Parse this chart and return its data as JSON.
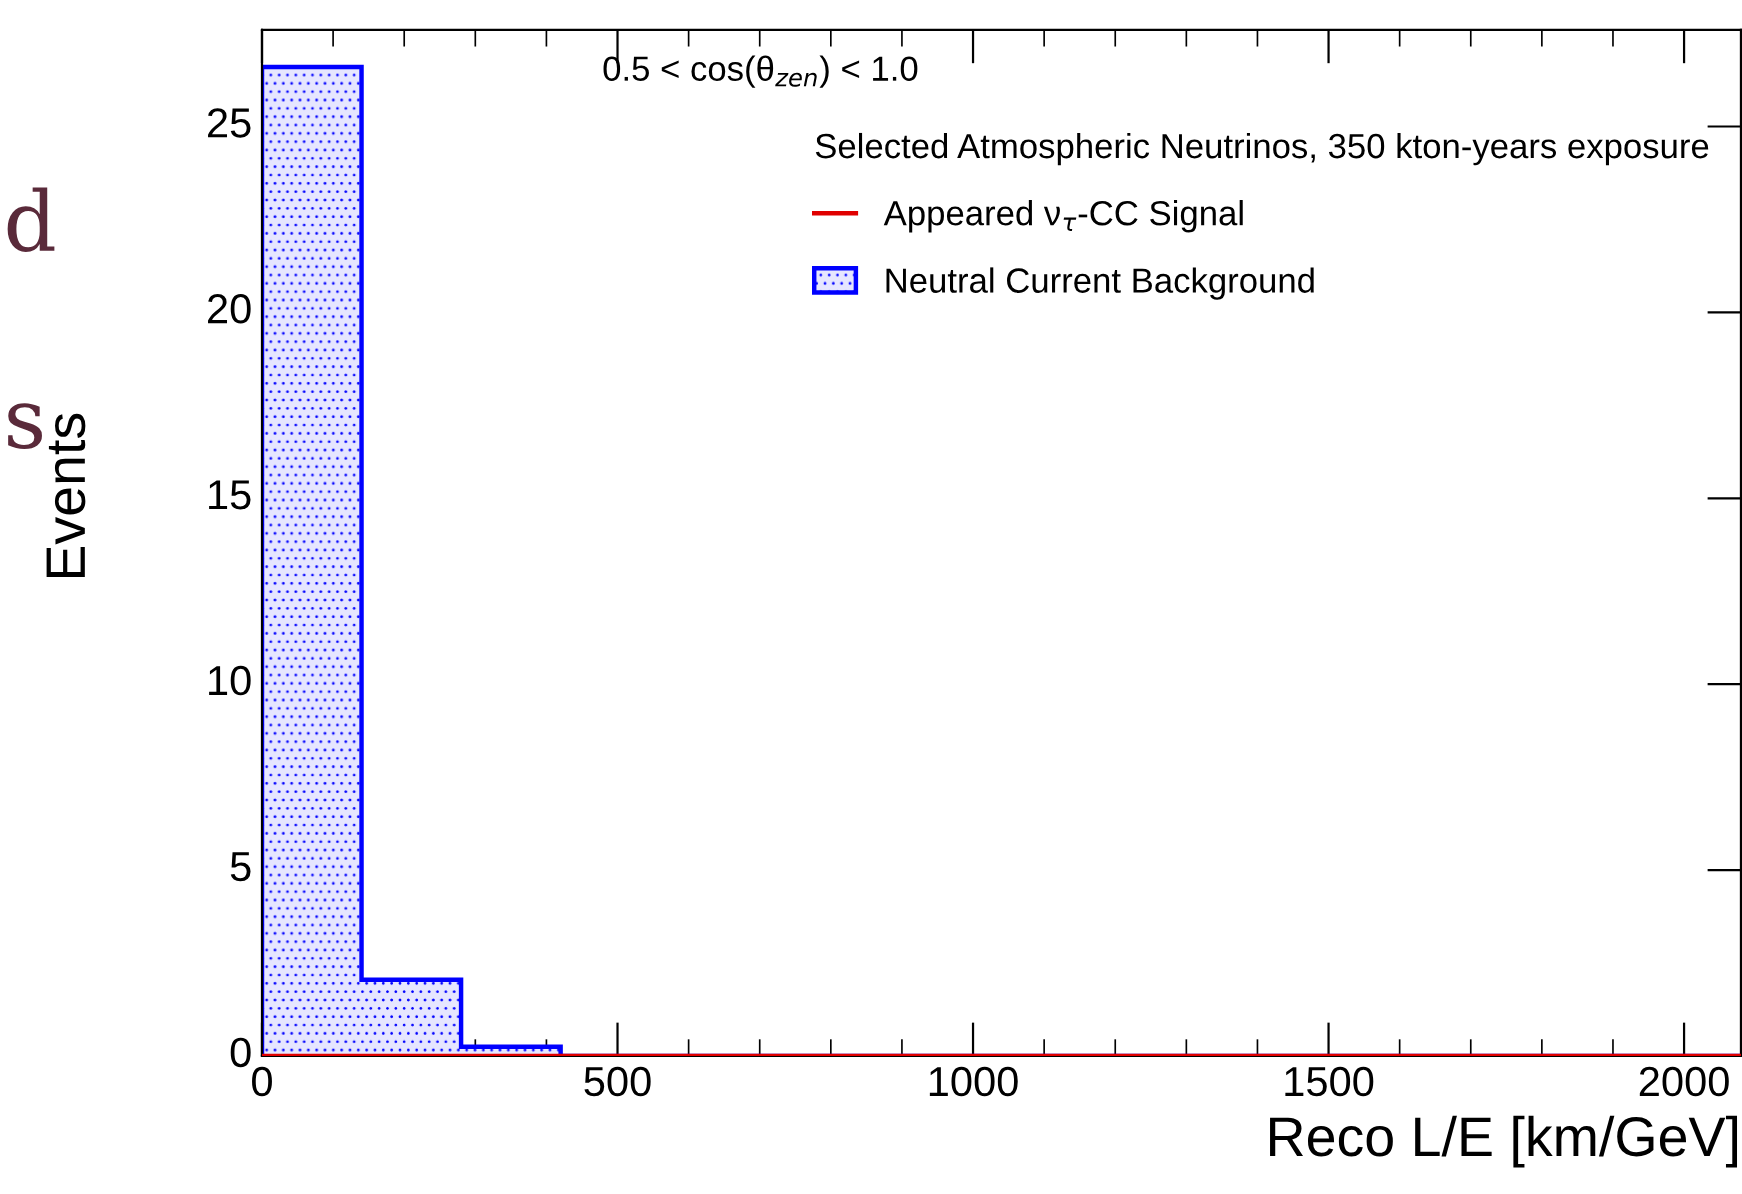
{
  "chart_data": {
    "type": "histogram",
    "xlabel": "Reco L/E [km/GeV]",
    "ylabel": "Events",
    "legend_title": "Selected Atmospheric Neutrinos, 350 kton-years exposure",
    "annotations": [
      "0.5 < cos(θ$_{zen}$) < 1.0",
      "d",
      "s"
    ],
    "bins": [
      0,
      140,
      280,
      420,
      560,
      700,
      840,
      980,
      1120,
      1260,
      1400,
      1540,
      1680,
      1820,
      1960,
      2080
    ],
    "series": [
      {
        "name": "Neutral Current Background",
        "color": "#0000ff",
        "values": [
          26.6,
          2.05,
          0.25,
          0,
          0,
          0,
          0,
          0,
          0,
          0,
          0,
          0,
          0,
          0,
          0
        ]
      },
      {
        "name": "Appeared ν$_{τ}$-CC Signal",
        "color": "#e00000",
        "values": [
          0,
          0,
          0,
          0,
          0,
          0,
          0,
          0,
          0,
          0,
          0,
          0,
          0,
          0,
          0
        ]
      }
    ],
    "xlim": [
      0,
      2080
    ],
    "ylim": [
      0,
      27.6
    ],
    "xticks": [
      0,
      500,
      1000,
      1500,
      2000
    ],
    "yticks": [
      0,
      5,
      10,
      15,
      20,
      25
    ],
    "grid": false,
    "legend": "top right"
  }
}
